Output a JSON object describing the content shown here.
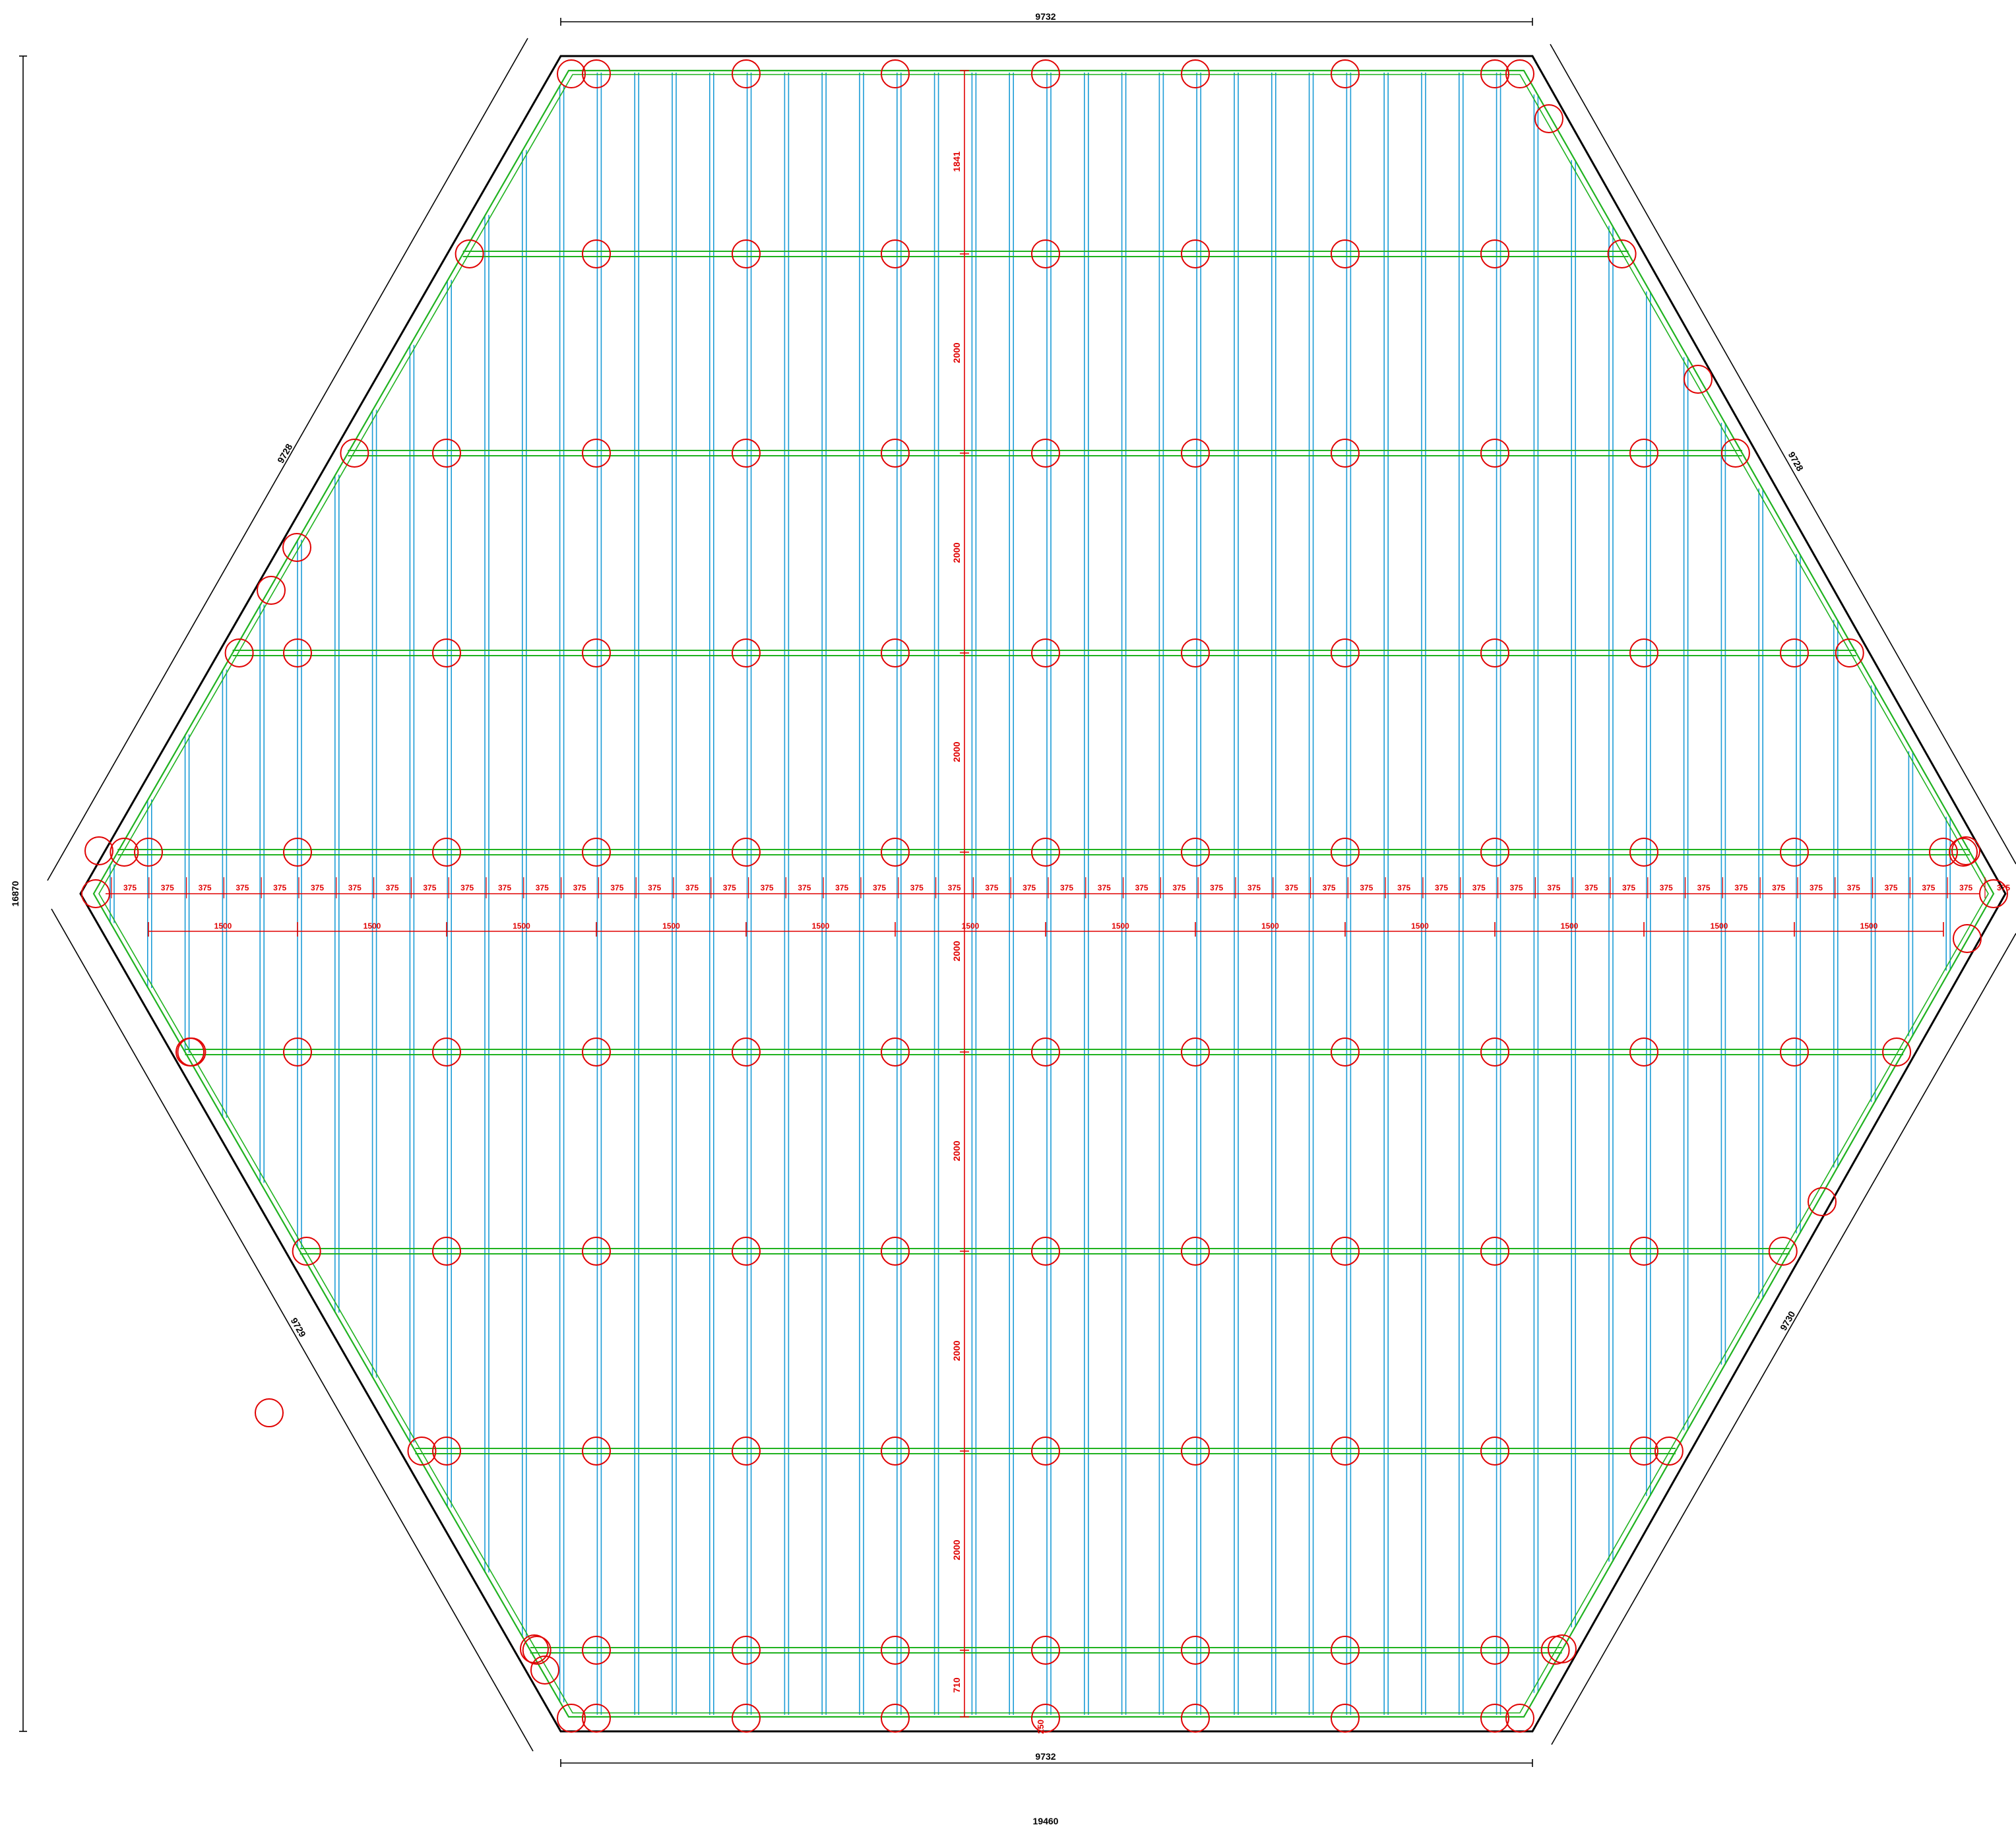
{
  "drawing": {
    "colors": {
      "outline": "#000000",
      "edge_beam": "#1fb21f",
      "joist": "#1a9bd6",
      "joist_inner": "#3a3a8a",
      "support": "#e00000",
      "dimension": "#e00000",
      "dimension_outline": "#000000"
    },
    "dimensions": {
      "top": "9732",
      "bottom": "9732",
      "overall_width": "19460",
      "overall_height": "16870",
      "side_upper_left": "9728",
      "side_upper_right": "9728",
      "side_lower_left": "9729",
      "side_lower_right": "9730",
      "row_spacing": [
        "1841",
        "2000",
        "2000",
        "2000",
        "2000",
        "2000",
        "2000",
        "2000",
        "710"
      ],
      "bottom_offset": "250",
      "joist_spacing": "375",
      "support_spacing": "1500"
    },
    "joist_spacing_count": 51,
    "support_spacing_count": 12
  }
}
